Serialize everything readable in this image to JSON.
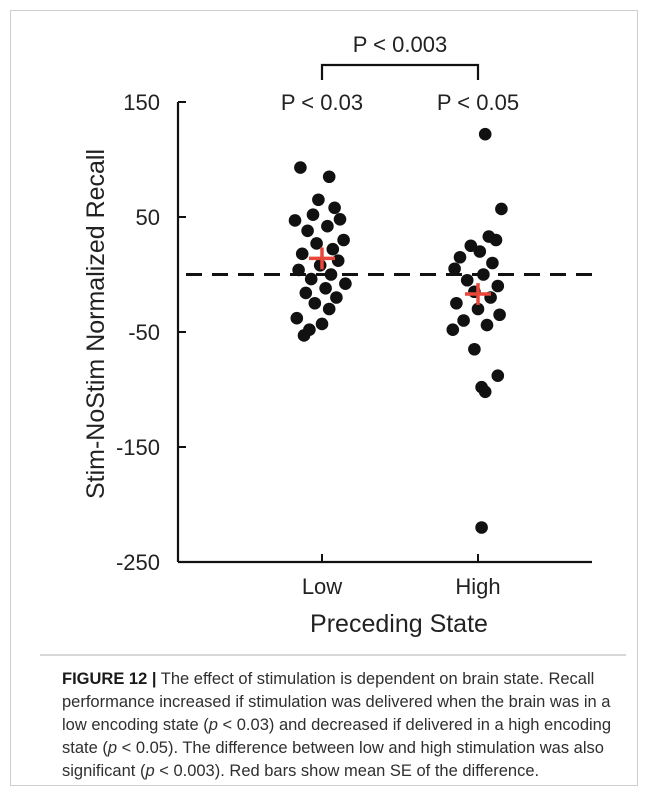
{
  "chart_data": {
    "type": "scatter",
    "xlabel": "Preceding State",
    "ylabel": "Stim-NoStim Normalized Recall",
    "categories": [
      "Low",
      "High"
    ],
    "ylim": [
      -250,
      150
    ],
    "yticks": [
      150,
      50,
      -50,
      -150,
      -250
    ],
    "reference_line": {
      "y": 0,
      "style": "dashed"
    },
    "series": [
      {
        "category": "Low",
        "points": [
          {
            "x": -0.12,
            "y": 93
          },
          {
            "x": 0.04,
            "y": 85
          },
          {
            "x": -0.02,
            "y": 65
          },
          {
            "x": 0.07,
            "y": 58
          },
          {
            "x": -0.05,
            "y": 52
          },
          {
            "x": 0.1,
            "y": 48
          },
          {
            "x": -0.15,
            "y": 47
          },
          {
            "x": 0.03,
            "y": 42
          },
          {
            "x": -0.08,
            "y": 38
          },
          {
            "x": 0.12,
            "y": 30
          },
          {
            "x": -0.03,
            "y": 27
          },
          {
            "x": 0.06,
            "y": 22
          },
          {
            "x": -0.11,
            "y": 18
          },
          {
            "x": 0.09,
            "y": 12
          },
          {
            "x": -0.01,
            "y": 8
          },
          {
            "x": -0.13,
            "y": 4
          },
          {
            "x": 0.05,
            "y": 0
          },
          {
            "x": -0.06,
            "y": -4
          },
          {
            "x": 0.13,
            "y": -8
          },
          {
            "x": 0.02,
            "y": -12
          },
          {
            "x": -0.09,
            "y": -16
          },
          {
            "x": 0.08,
            "y": -20
          },
          {
            "x": -0.04,
            "y": -25
          },
          {
            "x": 0.04,
            "y": -30
          },
          {
            "x": -0.14,
            "y": -38
          },
          {
            "x": 0.0,
            "y": -43
          },
          {
            "x": -0.07,
            "y": -48
          },
          {
            "x": -0.1,
            "y": -53
          }
        ],
        "mean": 14,
        "se": 6
      },
      {
        "category": "High",
        "points": [
          {
            "x": 0.04,
            "y": 122
          },
          {
            "x": 0.13,
            "y": 57
          },
          {
            "x": 0.06,
            "y": 33
          },
          {
            "x": 0.1,
            "y": 30
          },
          {
            "x": -0.04,
            "y": 25
          },
          {
            "x": 0.01,
            "y": 20
          },
          {
            "x": -0.1,
            "y": 15
          },
          {
            "x": 0.08,
            "y": 10
          },
          {
            "x": -0.13,
            "y": 5
          },
          {
            "x": 0.03,
            "y": 0
          },
          {
            "x": -0.06,
            "y": -5
          },
          {
            "x": 0.11,
            "y": -10
          },
          {
            "x": -0.02,
            "y": -15
          },
          {
            "x": 0.07,
            "y": -20
          },
          {
            "x": -0.12,
            "y": -25
          },
          {
            "x": 0.0,
            "y": -30
          },
          {
            "x": 0.12,
            "y": -35
          },
          {
            "x": -0.08,
            "y": -40
          },
          {
            "x": 0.05,
            "y": -44
          },
          {
            "x": -0.14,
            "y": -48
          },
          {
            "x": -0.02,
            "y": -65
          },
          {
            "x": 0.11,
            "y": -88
          },
          {
            "x": 0.02,
            "y": -98
          },
          {
            "x": 0.04,
            "y": -102
          },
          {
            "x": 0.02,
            "y": -220
          }
        ],
        "mean": -17,
        "se": 6
      }
    ],
    "annotations": {
      "low_p": "P < 0.03",
      "high_p": "P < 0.05",
      "between_p": "P < 0.003"
    },
    "colors": {
      "points": "#111111",
      "mean_marker": "#e8473a",
      "axis": "#111111"
    }
  },
  "caption": {
    "lead": "FIGURE 12 |",
    "text_1": " The effect of stimulation is dependent on brain state. Recall performance increased if stimulation was delivered when the brain was in a low encoding state (",
    "p1_sym": "p",
    "p1_rest": " < 0.03) and decreased if delivered in a high encoding state (",
    "p2_sym": "p",
    "p2_rest": " < 0.05). The difference between low and high stimulation was also significant (",
    "p3_sym": "p",
    "p3_rest": " < 0.003). Red bars show mean SE of the difference."
  }
}
